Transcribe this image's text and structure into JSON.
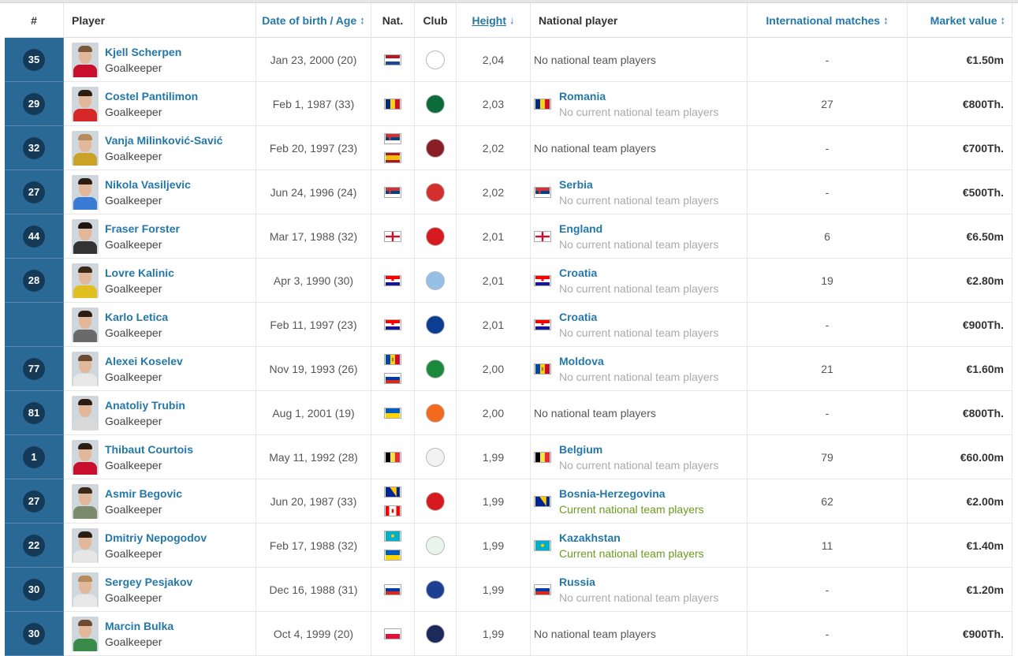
{
  "columns": {
    "num": "#",
    "player": "Player",
    "dob": "Date of birth / Age",
    "nat": "Nat.",
    "club": "Club",
    "height": "Height",
    "national": "National player",
    "intl": "International matches",
    "value": "Market value"
  },
  "icons": {
    "sort_both": "↕",
    "sort_down": "↓"
  },
  "colors": {
    "link_blue": "#2378a9",
    "number_column": "#2a6896",
    "badge": "#153a58",
    "current_green": "#6d9a1e",
    "muted_grey": "#aaaaaa"
  },
  "rows": [
    {
      "num": "35",
      "name": "Kjell Scherpen",
      "pos": "Goalkeeper",
      "dob": "Jan 23, 2000 (20)",
      "flags": [
        "netherlands"
      ],
      "club": "ajax-crest",
      "club_color": "#ffffff",
      "height": "2,04",
      "nat_name": "",
      "nat_status": "",
      "nat_flag": "",
      "nat_none": "No national team players",
      "status_current": false,
      "intl": "-",
      "value": "€1.50m",
      "shirt": "#c8102e",
      "hair": "#7a5a3a"
    },
    {
      "num": "29",
      "name": "Costel Pantilimon",
      "pos": "Goalkeeper",
      "dob": "Feb 1, 1987 (33)",
      "flags": [
        "romania"
      ],
      "club": "denizlispor-crest",
      "club_color": "#0b6b3a",
      "height": "2,03",
      "nat_name": "Romania",
      "nat_status": "No current national team players",
      "nat_flag": "romania",
      "nat_none": "",
      "status_current": false,
      "intl": "27",
      "value": "€800Th.",
      "shirt": "#d62828",
      "hair": "#2b1d14"
    },
    {
      "num": "32",
      "name": "Vanja Milinković-Savić",
      "pos": "Goalkeeper",
      "dob": "Feb 20, 1997 (23)",
      "flags": [
        "serbia",
        "spain"
      ],
      "club": "torino-crest",
      "club_color": "#8b1e24",
      "height": "2,02",
      "nat_name": "",
      "nat_status": "",
      "nat_flag": "",
      "nat_none": "No national team players",
      "status_current": false,
      "intl": "-",
      "value": "€700Th.",
      "shirt": "#c9a227",
      "hair": "#b58b5e"
    },
    {
      "num": "27",
      "name": "Nikola Vasiljevic",
      "pos": "Goalkeeper",
      "dob": "Jun 24, 1996 (24)",
      "flags": [
        "serbia"
      ],
      "club": "red-star-crest",
      "club_color": "#d32f2f",
      "height": "2,02",
      "nat_name": "Serbia",
      "nat_status": "No current national team players",
      "nat_flag": "serbia",
      "nat_none": "",
      "status_current": false,
      "intl": "-",
      "value": "€500Th.",
      "shirt": "#3a7bd5",
      "hair": "#2b1d14"
    },
    {
      "num": "44",
      "name": "Fraser Forster",
      "pos": "Goalkeeper",
      "dob": "Mar 17, 1988 (32)",
      "flags": [
        "england"
      ],
      "club": "southampton-crest",
      "club_color": "#d71920",
      "height": "2,01",
      "nat_name": "England",
      "nat_status": "No current national team players",
      "nat_flag": "england",
      "nat_none": "",
      "status_current": false,
      "intl": "6",
      "value": "€6.50m",
      "shirt": "#333333",
      "hair": "#1c1410"
    },
    {
      "num": "28",
      "name": "Lovre Kalinic",
      "pos": "Goalkeeper",
      "dob": "Apr 3, 1990 (30)",
      "flags": [
        "croatia"
      ],
      "club": "aston-villa-crest",
      "club_color": "#95bfe5",
      "height": "2,01",
      "nat_name": "Croatia",
      "nat_status": "No current national team players",
      "nat_flag": "croatia",
      "nat_none": "",
      "status_current": false,
      "intl": "19",
      "value": "€2.80m",
      "shirt": "#e0c020",
      "hair": "#3a2a1a"
    },
    {
      "num": "",
      "name": "Karlo Letica",
      "pos": "Goalkeeper",
      "dob": "Feb 11, 1997 (23)",
      "flags": [
        "croatia"
      ],
      "club": "club-brugge-crest",
      "club_color": "#0b3d91",
      "height": "2,01",
      "nat_name": "Croatia",
      "nat_status": "No current national team players",
      "nat_flag": "croatia",
      "nat_none": "",
      "status_current": false,
      "intl": "-",
      "value": "€900Th.",
      "shirt": "#6a6a6a",
      "hair": "#2b1d14"
    },
    {
      "num": "77",
      "name": "Alexei Koselev",
      "pos": "Goalkeeper",
      "dob": "Nov 19, 1993 (26)",
      "flags": [
        "moldova",
        "russia"
      ],
      "club": "fortuna-sittard-crest",
      "club_color": "#1a8a3a",
      "height": "2,00",
      "nat_name": "Moldova",
      "nat_status": "No current national team players",
      "nat_flag": "moldova",
      "nat_none": "",
      "status_current": false,
      "intl": "21",
      "value": "€1.60m",
      "shirt": "#e8e8e8",
      "hair": "#6b4a2e"
    },
    {
      "num": "81",
      "name": "Anatoliy Trubin",
      "pos": "Goalkeeper",
      "dob": "Aug 1, 2001 (19)",
      "flags": [
        "ukraine"
      ],
      "club": "shakhtar-crest",
      "club_color": "#f26b1d",
      "height": "2,00",
      "nat_name": "",
      "nat_status": "",
      "nat_flag": "",
      "nat_none": "No national team players",
      "status_current": false,
      "intl": "-",
      "value": "€800Th.",
      "shirt": "#d9d9d9",
      "hair": "#2b1d14"
    },
    {
      "num": "1",
      "name": "Thibaut Courtois",
      "pos": "Goalkeeper",
      "dob": "May 11, 1992 (28)",
      "flags": [
        "belgium"
      ],
      "club": "real-madrid-crest",
      "club_color": "#f2f2f2",
      "height": "1,99",
      "nat_name": "Belgium",
      "nat_status": "No current national team players",
      "nat_flag": "belgium",
      "nat_none": "",
      "status_current": false,
      "intl": "79",
      "value": "€60.00m",
      "shirt": "#c8102e",
      "hair": "#2b1d14"
    },
    {
      "num": "27",
      "name": "Asmir Begovic",
      "pos": "Goalkeeper",
      "dob": "Jun 20, 1987 (33)",
      "flags": [
        "bosnia",
        "canada"
      ],
      "club": "bournemouth-crest",
      "club_color": "#d71920",
      "height": "1,99",
      "nat_name": "Bosnia-Herzegovina",
      "nat_status": "Current national team players",
      "nat_flag": "bosnia",
      "nat_none": "",
      "status_current": true,
      "intl": "62",
      "value": "€2.00m",
      "shirt": "#7a8a6a",
      "hair": "#3a2a1a"
    },
    {
      "num": "22",
      "name": "Dmitriy Nepogodov",
      "pos": "Goalkeeper",
      "dob": "Feb 17, 1988 (32)",
      "flags": [
        "kazakhstan",
        "ukraine"
      ],
      "club": "tobol-crest",
      "club_color": "#e8f4ec",
      "height": "1,99",
      "nat_name": "Kazakhstan",
      "nat_status": "Current national team players",
      "nat_flag": "kazakhstan",
      "nat_none": "",
      "status_current": true,
      "intl": "11",
      "value": "€1.40m",
      "shirt": "#e6e6e6",
      "hair": "#2b1d14"
    },
    {
      "num": "30",
      "name": "Sergey Pesjakov",
      "pos": "Goalkeeper",
      "dob": "Dec 16, 1988 (31)",
      "flags": [
        "russia"
      ],
      "club": "rostov-crest",
      "club_color": "#1c3f94",
      "height": "1,99",
      "nat_name": "Russia",
      "nat_status": "No current national team players",
      "nat_flag": "russia",
      "nat_none": "",
      "status_current": false,
      "intl": "-",
      "value": "€1.20m",
      "shirt": "#e8e8e8",
      "hair": "#b58b5e"
    },
    {
      "num": "30",
      "name": "Marcin Bulka",
      "pos": "Goalkeeper",
      "dob": "Oct 4, 1999 (20)",
      "flags": [
        "poland"
      ],
      "club": "psg-crest",
      "club_color": "#1b2a5a",
      "height": "1,99",
      "nat_name": "",
      "nat_status": "",
      "nat_flag": "",
      "nat_none": "No national team players",
      "status_current": false,
      "intl": "-",
      "value": "€900Th.",
      "shirt": "#3a8a4a",
      "hair": "#6b4a2e"
    }
  ]
}
